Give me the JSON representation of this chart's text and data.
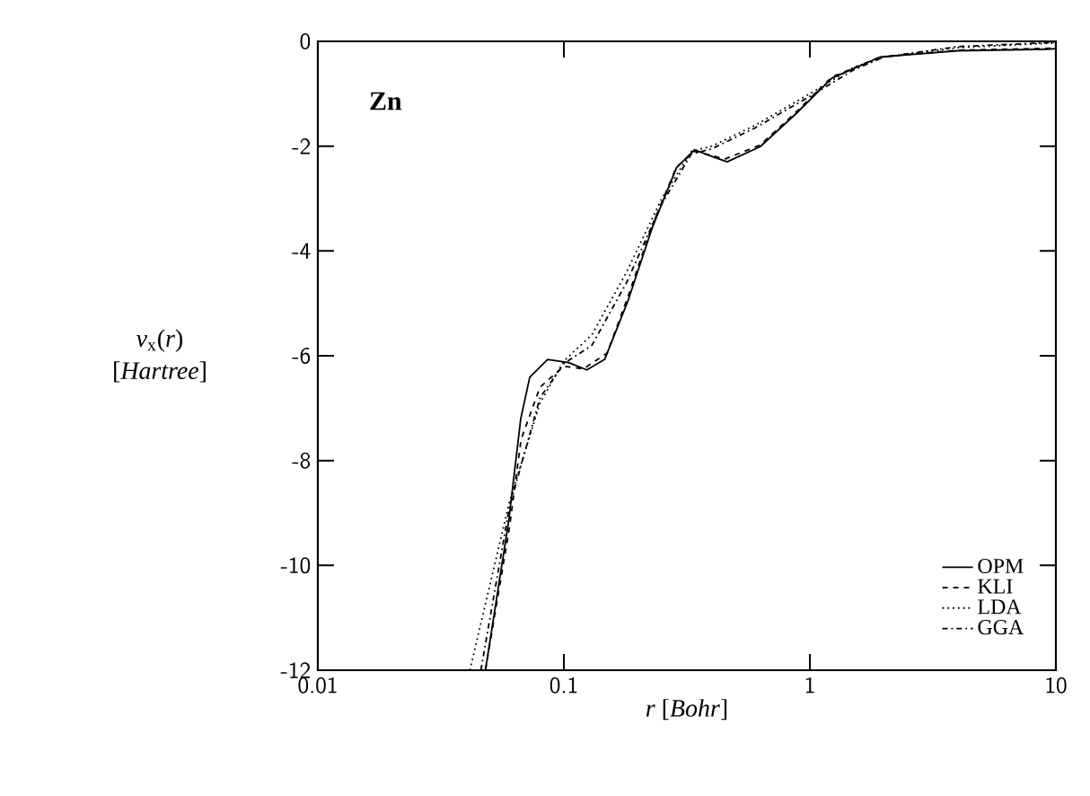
{
  "chart_data": {
    "type": "line",
    "xlabel": "*r*   [*Bohr*]",
    "ylabel": "*v*$_{x}$(*r*) [*Hartree*]",
    "annotations": [
      "**Zn**"
    ],
    "log": "x",
    "xlim": [
      0.01,
      10
    ],
    "xticks": [
      0.01,
      0.1,
      1,
      10
    ],
    "ylim": [
      -12,
      0
    ],
    "yticks": [
      -12,
      -10,
      -8,
      -6,
      -4,
      -2,
      0
    ],
    "legend": "bottom right",
    "grid": false,
    "series": [
      {
        "name": "OPM",
        "color": "#000000",
        "line_style": "solid",
        "x": [
          0.048,
          0.0597,
          0.0668,
          0.0727,
          0.0859,
          0.1047,
          0.124,
          0.1465,
          0.183,
          0.229,
          0.287,
          0.34,
          0.402,
          0.461,
          0.628,
          0.879,
          1.23,
          1.93,
          3.98,
          9.25,
          10
        ],
        "values": [
          -12,
          -9.15,
          -7.2,
          -6.41,
          -6.07,
          -6.13,
          -6.27,
          -6.07,
          -4.93,
          -3.55,
          -2.41,
          -2.07,
          -2.2,
          -2.3,
          -2.01,
          -1.38,
          -0.7,
          -0.3,
          -0.18,
          -0.15,
          -0.14
        ]
      },
      {
        "name": "KLI",
        "color": "#000000",
        "line_style": "dashed",
        "x": [
          0.048,
          0.06,
          0.067,
          0.08,
          0.1,
          0.12,
          0.15,
          0.183,
          0.229,
          0.287,
          0.34,
          0.4,
          0.45,
          0.628,
          0.879,
          1.23,
          1.93,
          3.98,
          10
        ],
        "values": [
          -12,
          -9.3,
          -7.6,
          -6.6,
          -6.2,
          -6.25,
          -5.95,
          -4.85,
          -3.5,
          -2.4,
          -2.1,
          -2.18,
          -2.25,
          -1.98,
          -1.35,
          -0.68,
          -0.3,
          -0.17,
          -0.13
        ]
      },
      {
        "name": "LDA",
        "color": "#000000",
        "line_style": "dotted",
        "x": [
          0.0415,
          0.06,
          0.08,
          0.1,
          0.13,
          0.18,
          0.25,
          0.33,
          0.4,
          0.6,
          1.0,
          1.5,
          2,
          4,
          10
        ],
        "values": [
          -12,
          -8.8,
          -6.9,
          -6.1,
          -5.6,
          -4.4,
          -3.0,
          -2.1,
          -2.0,
          -1.6,
          -1.0,
          -0.5,
          -0.3,
          -0.12,
          -0.03
        ]
      },
      {
        "name": "GGA",
        "color": "#000000",
        "line_style": "dashdot",
        "x": [
          0.046,
          0.06,
          0.08,
          0.1,
          0.13,
          0.18,
          0.25,
          0.33,
          0.4,
          0.6,
          1.0,
          1.5,
          2,
          4,
          10
        ],
        "values": [
          -12,
          -8.9,
          -6.8,
          -6.15,
          -5.8,
          -4.6,
          -3.1,
          -2.15,
          -2.05,
          -1.65,
          -1.05,
          -0.55,
          -0.3,
          -0.1,
          -0.02
        ]
      }
    ]
  }
}
